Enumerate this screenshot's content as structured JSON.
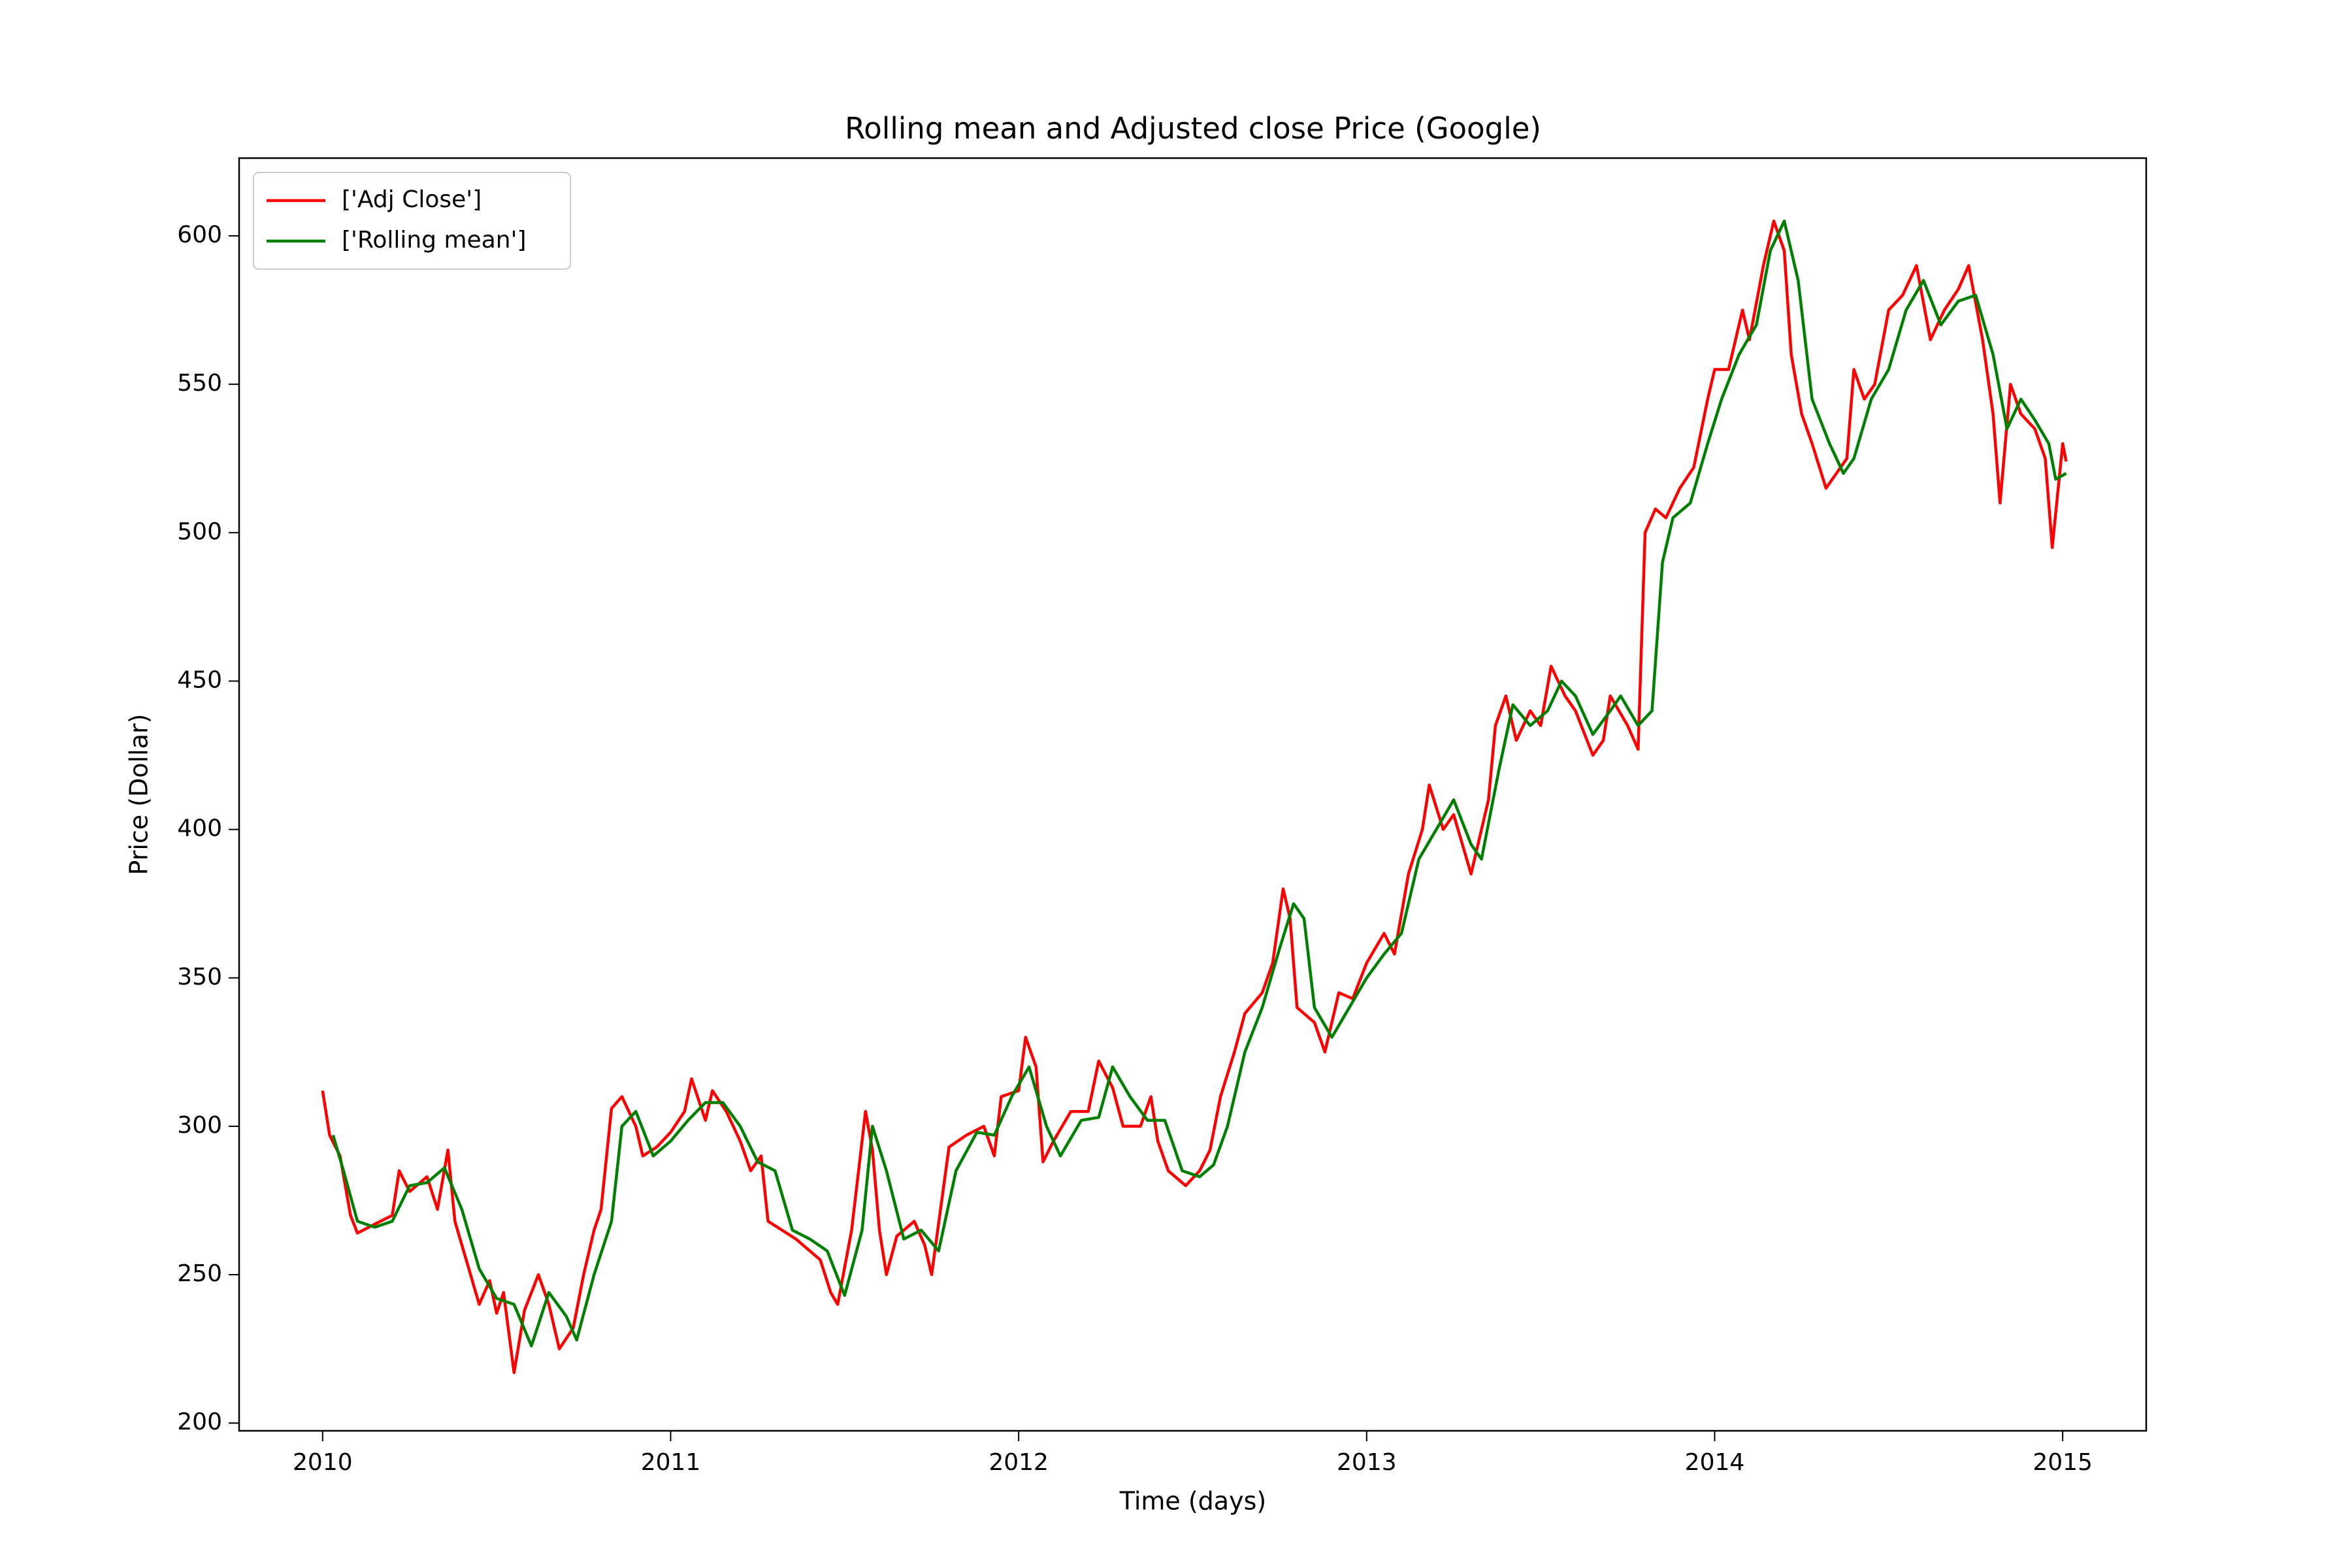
{
  "chart_data": {
    "type": "line",
    "title": "Rolling mean and Adjusted close Price (Google)",
    "x_label": "Time (days)",
    "y_label": "Price (Dollar)",
    "xlim": [
      2009.76,
      2015.24
    ],
    "ylim": [
      197.4,
      626.2
    ],
    "xticks": [
      2010,
      2011,
      2012,
      2013,
      2014,
      2015
    ],
    "yticks": [
      200,
      250,
      300,
      350,
      400,
      450,
      500,
      550,
      600
    ],
    "grid": false,
    "legend": "upper-left",
    "series": [
      {
        "name": "['Adj Close']",
        "color": "#ff0000",
        "x": [
          2010.0,
          2010.02,
          2010.05,
          2010.08,
          2010.1,
          2010.15,
          2010.2,
          2010.22,
          2010.25,
          2010.3,
          2010.33,
          2010.36,
          2010.38,
          2010.42,
          2010.45,
          2010.48,
          2010.5,
          2010.52,
          2010.55,
          2010.58,
          2010.62,
          2010.65,
          2010.68,
          2010.72,
          2010.75,
          2010.78,
          2010.8,
          2010.83,
          2010.86,
          2010.9,
          2010.92,
          2010.96,
          2011.0,
          2011.04,
          2011.06,
          2011.1,
          2011.12,
          2011.16,
          2011.2,
          2011.23,
          2011.26,
          2011.28,
          2011.32,
          2011.36,
          2011.4,
          2011.43,
          2011.46,
          2011.48,
          2011.52,
          2011.56,
          2011.58,
          2011.6,
          2011.62,
          2011.65,
          2011.7,
          2011.73,
          2011.75,
          2011.8,
          2011.85,
          2011.9,
          2011.93,
          2011.95,
          2012.0,
          2012.02,
          2012.05,
          2012.07,
          2012.1,
          2012.15,
          2012.2,
          2012.23,
          2012.27,
          2012.3,
          2012.35,
          2012.38,
          2012.4,
          2012.43,
          2012.48,
          2012.52,
          2012.55,
          2012.58,
          2012.62,
          2012.65,
          2012.7,
          2012.73,
          2012.76,
          2012.78,
          2012.8,
          2012.85,
          2012.88,
          2012.92,
          2012.96,
          2013.0,
          2013.05,
          2013.08,
          2013.12,
          2013.16,
          2013.18,
          2013.22,
          2013.25,
          2013.28,
          2013.3,
          2013.35,
          2013.37,
          2013.4,
          2013.43,
          2013.47,
          2013.5,
          2013.53,
          2013.57,
          2013.6,
          2013.65,
          2013.68,
          2013.7,
          2013.75,
          2013.78,
          2013.8,
          2013.83,
          2013.86,
          2013.9,
          2013.94,
          2013.98,
          2014.0,
          2014.04,
          2014.08,
          2014.1,
          2014.14,
          2014.17,
          2014.2,
          2014.22,
          2014.25,
          2014.28,
          2014.32,
          2014.35,
          2014.38,
          2014.4,
          2014.43,
          2014.46,
          2014.5,
          2014.54,
          2014.58,
          2014.62,
          2014.66,
          2014.7,
          2014.73,
          2014.77,
          2014.8,
          2014.82,
          2014.85,
          2014.88,
          2014.92,
          2014.95,
          2014.97,
          2015.0,
          2015.01
        ],
        "values": [
          312,
          297,
          290,
          270,
          264,
          267,
          270,
          285,
          278,
          283,
          272,
          292,
          268,
          252,
          240,
          248,
          237,
          244,
          217,
          238,
          250,
          240,
          225,
          232,
          250,
          265,
          272,
          306,
          310,
          300,
          290,
          293,
          298,
          305,
          316,
          302,
          312,
          305,
          295,
          285,
          290,
          268,
          265,
          262,
          258,
          255,
          244,
          240,
          265,
          305,
          292,
          265,
          250,
          263,
          268,
          260,
          250,
          293,
          297,
          300,
          290,
          310,
          312,
          330,
          320,
          288,
          295,
          305,
          305,
          322,
          313,
          300,
          300,
          310,
          295,
          285,
          280,
          285,
          292,
          310,
          325,
          338,
          345,
          355,
          380,
          370,
          340,
          335,
          325,
          345,
          343,
          355,
          365,
          358,
          385,
          400,
          415,
          400,
          405,
          393,
          385,
          410,
          435,
          445,
          430,
          440,
          435,
          455,
          445,
          440,
          425,
          430,
          445,
          435,
          427,
          500,
          508,
          505,
          515,
          522,
          545,
          555,
          555,
          575,
          565,
          590,
          605,
          595,
          560,
          540,
          530,
          515,
          520,
          525,
          555,
          545,
          550,
          575,
          580,
          590,
          565,
          575,
          582,
          590,
          565,
          540,
          510,
          550,
          540,
          535,
          525,
          495,
          530,
          524
        ]
      },
      {
        "name": "['Rolling mean']",
        "color": "#008000",
        "x": [
          2010.03,
          2010.06,
          2010.1,
          2010.15,
          2010.2,
          2010.25,
          2010.3,
          2010.35,
          2010.4,
          2010.45,
          2010.5,
          2010.55,
          2010.6,
          2010.65,
          2010.7,
          2010.73,
          2010.78,
          2010.83,
          2010.86,
          2010.9,
          2010.95,
          2011.0,
          2011.05,
          2011.1,
          2011.15,
          2011.2,
          2011.25,
          2011.3,
          2011.35,
          2011.4,
          2011.45,
          2011.5,
          2011.55,
          2011.58,
          2011.62,
          2011.67,
          2011.72,
          2011.77,
          2011.82,
          2011.88,
          2011.93,
          2011.98,
          2012.03,
          2012.08,
          2012.12,
          2012.18,
          2012.23,
          2012.27,
          2012.32,
          2012.37,
          2012.42,
          2012.47,
          2012.52,
          2012.56,
          2012.6,
          2012.65,
          2012.7,
          2012.75,
          2012.79,
          2012.82,
          2012.85,
          2012.9,
          2012.94,
          2013.0,
          2013.05,
          2013.1,
          2013.15,
          2013.2,
          2013.25,
          2013.3,
          2013.33,
          2013.38,
          2013.42,
          2013.47,
          2013.52,
          2013.56,
          2013.6,
          2013.65,
          2013.7,
          2013.73,
          2013.78,
          2013.82,
          2013.85,
          2013.88,
          2013.93,
          2013.98,
          2014.02,
          2014.07,
          2014.12,
          2014.16,
          2014.2,
          2014.24,
          2014.28,
          2014.33,
          2014.37,
          2014.4,
          2014.45,
          2014.5,
          2014.55,
          2014.6,
          2014.65,
          2014.7,
          2014.75,
          2014.8,
          2014.84,
          2014.88,
          2014.92,
          2014.96,
          2014.98,
          2015.01
        ],
        "values": [
          297,
          285,
          268,
          266,
          268,
          280,
          281,
          286,
          272,
          252,
          242,
          240,
          226,
          244,
          236,
          228,
          250,
          268,
          300,
          305,
          290,
          295,
          302,
          308,
          308,
          300,
          288,
          285,
          265,
          262,
          258,
          243,
          265,
          300,
          285,
          262,
          265,
          258,
          285,
          298,
          297,
          310,
          320,
          300,
          290,
          302,
          303,
          320,
          310,
          302,
          302,
          285,
          283,
          287,
          300,
          325,
          340,
          360,
          375,
          370,
          340,
          330,
          338,
          350,
          358,
          365,
          390,
          400,
          410,
          395,
          390,
          420,
          442,
          435,
          440,
          450,
          445,
          432,
          440,
          445,
          435,
          440,
          490,
          505,
          510,
          530,
          545,
          560,
          570,
          595,
          605,
          585,
          545,
          530,
          520,
          525,
          545,
          555,
          575,
          585,
          570,
          578,
          580,
          560,
          535,
          545,
          538,
          530,
          518,
          520
        ]
      }
    ]
  }
}
